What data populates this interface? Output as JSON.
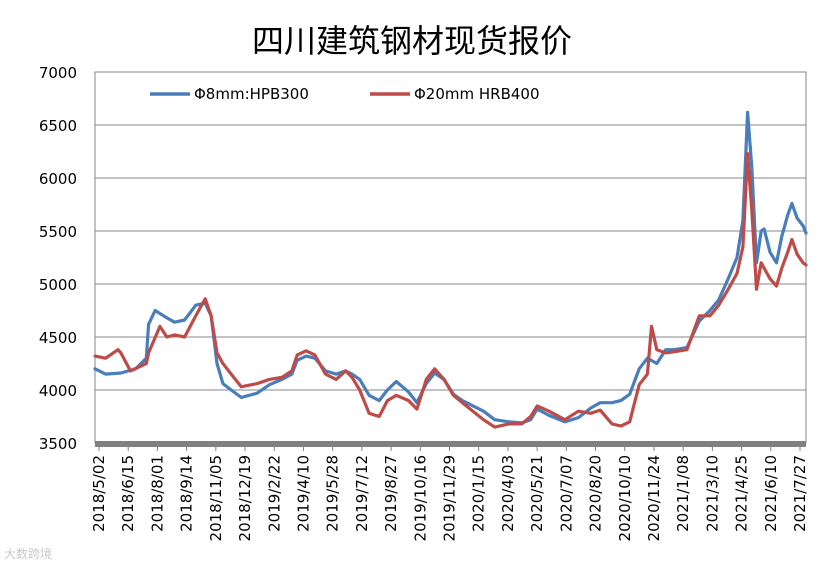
{
  "chart_data": {
    "type": "line",
    "title": "四川建筑钢材现货报价",
    "xlabel": "",
    "ylabel": "",
    "ylim": [
      3500,
      7000
    ],
    "yticks": [
      3500,
      4000,
      4500,
      5000,
      5500,
      6000,
      6500,
      7000
    ],
    "grid": true,
    "legend_position": "top",
    "x_tick_labels": [
      "2018/5/02",
      "2018/6/15",
      "2018/8/01",
      "2018/9/14",
      "2018/11/05",
      "2018/12/19",
      "2019/2/22",
      "2019/4/10",
      "2019/5/28",
      "2019/7/12",
      "2019/8/27",
      "2019/10/16",
      "2019/11/29",
      "2020/1/15",
      "2020/4/03",
      "2020/5/21",
      "2020/7/07",
      "2020/8/20",
      "2020/10/10",
      "2020/11/24",
      "2021/1/08",
      "2021/3/10",
      "2021/4/25",
      "2021/6/10",
      "2021/7/27"
    ],
    "x_range": [
      "2018/5/02",
      "2021/8/20"
    ],
    "series": [
      {
        "name": "Φ8mm:HPB300",
        "color": "#4a7ebb",
        "points": [
          [
            "2018/5/02",
            4200
          ],
          [
            "2018/5/20",
            4150
          ],
          [
            "2018/6/15",
            4160
          ],
          [
            "2018/7/10",
            4200
          ],
          [
            "2018/7/28",
            4300
          ],
          [
            "2018/8/01",
            4620
          ],
          [
            "2018/8/12",
            4750
          ],
          [
            "2018/9/01",
            4680
          ],
          [
            "2018/9/14",
            4640
          ],
          [
            "2018/10/01",
            4660
          ],
          [
            "2018/10/20",
            4800
          ],
          [
            "2018/11/05",
            4820
          ],
          [
            "2018/11/15",
            4700
          ],
          [
            "2018/11/25",
            4250
          ],
          [
            "2018/12/05",
            4060
          ],
          [
            "2018/12/19",
            4000
          ],
          [
            "2019/1/05",
            3930
          ],
          [
            "2019/2/01",
            3970
          ],
          [
            "2019/2/22",
            4050
          ],
          [
            "2019/3/15",
            4100
          ],
          [
            "2019/4/01",
            4150
          ],
          [
            "2019/4/10",
            4280
          ],
          [
            "2019/4/25",
            4320
          ],
          [
            "2019/5/10",
            4300
          ],
          [
            "2019/5/28",
            4180
          ],
          [
            "2019/6/15",
            4150
          ],
          [
            "2019/7/01",
            4180
          ],
          [
            "2019/7/12",
            4150
          ],
          [
            "2019/7/25",
            4100
          ],
          [
            "2019/8/10",
            3950
          ],
          [
            "2019/8/27",
            3900
          ],
          [
            "2019/9/10",
            4000
          ],
          [
            "2019/9/25",
            4080
          ],
          [
            "2019/10/16",
            3980
          ],
          [
            "2019/10/30",
            3880
          ],
          [
            "2019/11/15",
            4060
          ],
          [
            "2019/11/29",
            4160
          ],
          [
            "2019/12/15",
            4100
          ],
          [
            "2019/12/31",
            3960
          ],
          [
            "2020/1/15",
            3900
          ],
          [
            "2020/2/20",
            3800
          ],
          [
            "2020/3/10",
            3720
          ],
          [
            "2020/4/03",
            3700
          ],
          [
            "2020/4/25",
            3690
          ],
          [
            "2020/5/10",
            3720
          ],
          [
            "2020/5/21",
            3820
          ],
          [
            "2020/6/10",
            3760
          ],
          [
            "2020/7/07",
            3700
          ],
          [
            "2020/7/30",
            3740
          ],
          [
            "2020/8/20",
            3830
          ],
          [
            "2020/9/05",
            3880
          ],
          [
            "2020/9/25",
            3880
          ],
          [
            "2020/10/10",
            3900
          ],
          [
            "2020/10/25",
            3960
          ],
          [
            "2020/11/10",
            4200
          ],
          [
            "2020/11/24",
            4300
          ],
          [
            "2020/12/10",
            4250
          ],
          [
            "2020/12/25",
            4380
          ],
          [
            "2021/1/08",
            4380
          ],
          [
            "2021/1/30",
            4400
          ],
          [
            "2021/2/20",
            4650
          ],
          [
            "2021/3/10",
            4750
          ],
          [
            "2021/3/25",
            4850
          ],
          [
            "2021/4/10",
            5050
          ],
          [
            "2021/4/25",
            5250
          ],
          [
            "2021/5/05",
            5600
          ],
          [
            "2021/5/13",
            6620
          ],
          [
            "2021/5/20",
            6100
          ],
          [
            "2021/5/28",
            5200
          ],
          [
            "2021/6/05",
            5500
          ],
          [
            "2021/6/10",
            5520
          ],
          [
            "2021/6/20",
            5300
          ],
          [
            "2021/7/01",
            5200
          ],
          [
            "2021/7/10",
            5450
          ],
          [
            "2021/7/20",
            5650
          ],
          [
            "2021/7/27",
            5760
          ],
          [
            "2021/8/05",
            5620
          ],
          [
            "2021/8/15",
            5550
          ],
          [
            "2021/8/20",
            5480
          ]
        ]
      },
      {
        "name": "Φ20mm HRB400",
        "color": "#be4b48",
        "points": [
          [
            "2018/5/02",
            4320
          ],
          [
            "2018/5/20",
            4300
          ],
          [
            "2018/6/10",
            4380
          ],
          [
            "2018/6/15",
            4350
          ],
          [
            "2018/7/01",
            4180
          ],
          [
            "2018/7/28",
            4250
          ],
          [
            "2018/8/01",
            4350
          ],
          [
            "2018/8/20",
            4600
          ],
          [
            "2018/9/01",
            4500
          ],
          [
            "2018/9/14",
            4520
          ],
          [
            "2018/10/01",
            4500
          ],
          [
            "2018/10/20",
            4700
          ],
          [
            "2018/11/05",
            4860
          ],
          [
            "2018/11/15",
            4700
          ],
          [
            "2018/11/25",
            4350
          ],
          [
            "2018/12/05",
            4250
          ],
          [
            "2018/12/19",
            4150
          ],
          [
            "2019/1/05",
            4030
          ],
          [
            "2019/2/01",
            4060
          ],
          [
            "2019/2/22",
            4100
          ],
          [
            "2019/3/15",
            4120
          ],
          [
            "2019/4/01",
            4180
          ],
          [
            "2019/4/10",
            4330
          ],
          [
            "2019/4/25",
            4370
          ],
          [
            "2019/5/10",
            4330
          ],
          [
            "2019/5/28",
            4150
          ],
          [
            "2019/6/15",
            4100
          ],
          [
            "2019/7/01",
            4180
          ],
          [
            "2019/7/12",
            4120
          ],
          [
            "2019/7/25",
            4000
          ],
          [
            "2019/8/10",
            3780
          ],
          [
            "2019/8/27",
            3750
          ],
          [
            "2019/9/10",
            3900
          ],
          [
            "2019/9/25",
            3950
          ],
          [
            "2019/10/16",
            3900
          ],
          [
            "2019/10/30",
            3820
          ],
          [
            "2019/11/15",
            4100
          ],
          [
            "2019/11/29",
            4200
          ],
          [
            "2019/12/15",
            4100
          ],
          [
            "2019/12/31",
            3950
          ],
          [
            "2020/1/15",
            3880
          ],
          [
            "2020/2/20",
            3720
          ],
          [
            "2020/3/10",
            3650
          ],
          [
            "2020/4/03",
            3680
          ],
          [
            "2020/4/25",
            3680
          ],
          [
            "2020/5/10",
            3750
          ],
          [
            "2020/5/21",
            3850
          ],
          [
            "2020/6/10",
            3800
          ],
          [
            "2020/7/07",
            3720
          ],
          [
            "2020/7/30",
            3800
          ],
          [
            "2020/8/20",
            3780
          ],
          [
            "2020/9/05",
            3810
          ],
          [
            "2020/9/25",
            3680
          ],
          [
            "2020/10/10",
            3660
          ],
          [
            "2020/10/25",
            3700
          ],
          [
            "2020/11/10",
            4050
          ],
          [
            "2020/11/24",
            4150
          ],
          [
            "2020/12/01",
            4600
          ],
          [
            "2020/12/10",
            4380
          ],
          [
            "2020/12/25",
            4350
          ],
          [
            "2021/1/08",
            4360
          ],
          [
            "2021/1/30",
            4380
          ],
          [
            "2021/2/20",
            4700
          ],
          [
            "2021/3/10",
            4700
          ],
          [
            "2021/3/25",
            4800
          ],
          [
            "2021/4/10",
            4950
          ],
          [
            "2021/4/25",
            5100
          ],
          [
            "2021/5/05",
            5350
          ],
          [
            "2021/5/13",
            6230
          ],
          [
            "2021/5/20",
            5700
          ],
          [
            "2021/5/28",
            4950
          ],
          [
            "2021/6/05",
            5200
          ],
          [
            "2021/6/10",
            5150
          ],
          [
            "2021/6/20",
            5050
          ],
          [
            "2021/7/01",
            4980
          ],
          [
            "2021/7/10",
            5150
          ],
          [
            "2021/7/20",
            5300
          ],
          [
            "2021/7/27",
            5420
          ],
          [
            "2021/8/05",
            5280
          ],
          [
            "2021/8/15",
            5200
          ],
          [
            "2021/8/20",
            5180
          ]
        ]
      }
    ]
  },
  "watermark": "大数跨境"
}
